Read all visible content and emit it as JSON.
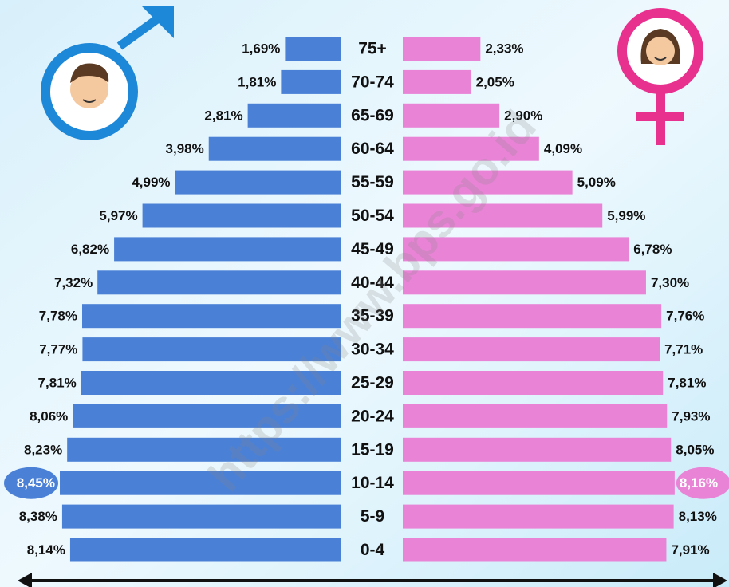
{
  "chart_data": {
    "type": "pyramid",
    "watermark": "https://www.bps.go.id",
    "categories": [
      "75+",
      "70-74",
      "65-69",
      "60-64",
      "55-59",
      "50-54",
      "45-49",
      "40-44",
      "35-39",
      "30-34",
      "25-29",
      "20-24",
      "15-19",
      "10-14",
      "5-9",
      "0-4"
    ],
    "series": [
      {
        "color": "#4a80d6",
        "values": [
          1.69,
          1.81,
          2.81,
          3.98,
          4.99,
          5.97,
          6.82,
          7.32,
          7.78,
          7.77,
          7.81,
          8.06,
          8.23,
          8.45,
          8.38,
          8.14
        ],
        "value_labels": [
          "1,69%",
          "1,81%",
          "2,81%",
          "3,98%",
          "4,99%",
          "5,97%",
          "6,82%",
          "7,32%",
          "7,78%",
          "7,77%",
          "7,81%",
          "8,06%",
          "8,23%",
          "8,45%",
          "8,38%",
          "8,14%"
        ]
      },
      {
        "color": "#e983d6",
        "values": [
          2.33,
          2.05,
          2.9,
          4.09,
          5.09,
          5.99,
          6.78,
          7.3,
          7.76,
          7.71,
          7.81,
          7.93,
          8.05,
          8.16,
          8.13,
          7.91
        ],
        "value_labels": [
          "2,33%",
          "2,05%",
          "2,90%",
          "4,09%",
          "5,09%",
          "5,99%",
          "6,78%",
          "7,30%",
          "7,76%",
          "7,71%",
          "7,81%",
          "7,93%",
          "8,05%",
          "8,16%",
          "8,13%",
          "7,91%"
        ]
      }
    ]
  }
}
